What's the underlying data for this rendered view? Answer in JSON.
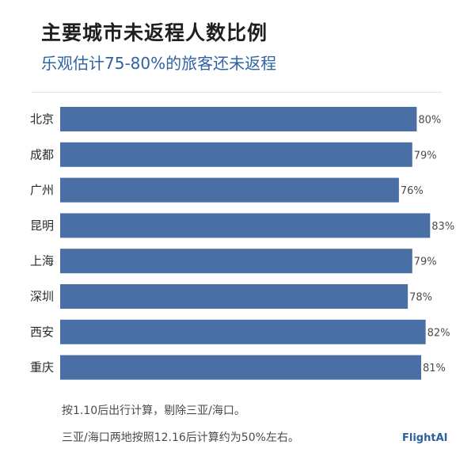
{
  "chart_data": {
    "type": "bar",
    "orientation": "horizontal",
    "title": "主要城市未返程人数比例",
    "subtitle": "乐观估计75-80%的旅客还未返程",
    "categories": [
      "北京",
      "成都",
      "广州",
      "昆明",
      "上海",
      "深圳",
      "西安",
      "重庆"
    ],
    "values": [
      80,
      79,
      76,
      83,
      79,
      78,
      82,
      81
    ],
    "value_labels": [
      "80%",
      "79%",
      "76%",
      "83%",
      "79%",
      "78%",
      "82%",
      "81%"
    ],
    "unit": "%",
    "grid": false,
    "bar_color": "#4a6fa5"
  },
  "notes": {
    "line1": "按1.10后出行计算，剔除三亚/海口。",
    "line2": "三亚/海口两地按照12.16后计算约为50%左右。"
  },
  "brand": "FlightAI"
}
